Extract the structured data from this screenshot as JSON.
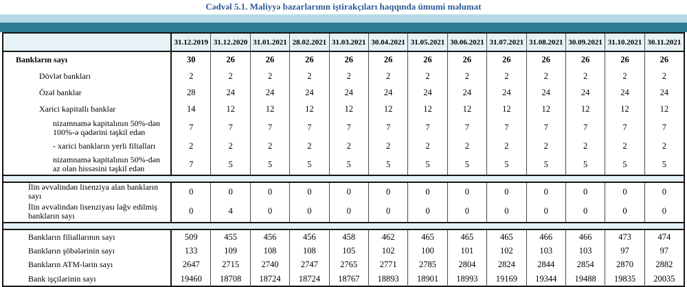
{
  "title": "Cədvəl 5.1. Maliyyə bazarlarının iştirakçıları haqqında ümumi məlumat",
  "colors": {
    "title_blue": "#2e5a97",
    "band_light_blue": "#b7dbe6",
    "band_teal": "#2e7e95",
    "header_bg": "#e7f2f7",
    "separator_bg": "#e4f1f6",
    "border": "#141414"
  },
  "table": {
    "columns": [
      "31.12.2019",
      "31.12.2020",
      "31.01.2021",
      "28.02.2021",
      "31.03.2021",
      "30.04.2021",
      "31.05.2021",
      "30.06.2021",
      "31.07.2021",
      "31.08.2021",
      "30.09.2021",
      "31.10.2021",
      "30.11.2021"
    ],
    "sections": [
      {
        "rows": [
          {
            "label": "Bankların sayı",
            "indent": 0,
            "bold": true,
            "values": [
              30,
              26,
              26,
              26,
              26,
              26,
              26,
              26,
              26,
              26,
              26,
              26,
              26
            ]
          },
          {
            "label": "Dövlət bankları",
            "indent": 2,
            "bold": false,
            "values": [
              2,
              2,
              2,
              2,
              2,
              2,
              2,
              2,
              2,
              2,
              2,
              2,
              2
            ]
          },
          {
            "label": "Özəl banklar",
            "indent": 2,
            "bold": false,
            "values": [
              28,
              24,
              24,
              24,
              24,
              24,
              24,
              24,
              24,
              24,
              24,
              24,
              24
            ]
          },
          {
            "label": "Xarici kapitallı banklar",
            "indent": 2,
            "bold": false,
            "values": [
              14,
              12,
              12,
              12,
              12,
              12,
              12,
              12,
              12,
              12,
              12,
              12,
              12
            ]
          },
          {
            "label": "nizamnamə kapitalının 50%-dən 100%-ə qədərini təşkil edən",
            "indent": 3,
            "bold": false,
            "values": [
              7,
              7,
              7,
              7,
              7,
              7,
              7,
              7,
              7,
              7,
              7,
              7,
              7
            ]
          },
          {
            "label": "-  xarici bankların yerli filialları",
            "indent": 3,
            "bold": false,
            "values": [
              2,
              2,
              2,
              2,
              2,
              2,
              2,
              2,
              2,
              2,
              2,
              2,
              2
            ]
          },
          {
            "label": "nizamnamə kapitalının 50%-dən az olan hissəsini  təşkil edən",
            "indent": 3,
            "bold": false,
            "values": [
              7,
              5,
              5,
              5,
              5,
              5,
              5,
              5,
              5,
              5,
              5,
              5,
              5
            ]
          }
        ]
      },
      {
        "rows": [
          {
            "label": "İlin əvvəlindən lisenziya alan bankların sayı",
            "indent": 1,
            "bold": false,
            "values": [
              0,
              0,
              0,
              0,
              0,
              0,
              0,
              0,
              0,
              0,
              0,
              0,
              0
            ]
          },
          {
            "label": "İlin əvvəlindən lisenziyası ləğv edilmiş bankların sayı",
            "indent": 1,
            "bold": false,
            "values": [
              0,
              4,
              0,
              0,
              0,
              0,
              0,
              0,
              0,
              0,
              0,
              0,
              0
            ]
          }
        ]
      },
      {
        "rows": [
          {
            "label": "Bankların filiallarının sayı",
            "indent": 1,
            "bold": false,
            "values": [
              509,
              455,
              456,
              456,
              458,
              462,
              465,
              465,
              465,
              466,
              466,
              473,
              474
            ]
          },
          {
            "label": "Bankların şöbələrinin sayı",
            "indent": 1,
            "bold": false,
            "values": [
              133,
              109,
              108,
              108,
              105,
              102,
              100,
              101,
              102,
              103,
              103,
              97,
              97
            ]
          },
          {
            "label": "Bankların ATM-lərin sayı",
            "indent": 1,
            "bold": false,
            "values": [
              2647,
              2715,
              2740,
              2747,
              2765,
              2771,
              2785,
              2804,
              2824,
              2844,
              2854,
              2870,
              2882
            ]
          },
          {
            "label": "Bank işçilərinin sayı",
            "indent": 1,
            "bold": false,
            "values": [
              19460,
              18708,
              18724,
              18724,
              18767,
              18893,
              18901,
              18993,
              19169,
              19344,
              19488,
              19835,
              20035
            ]
          }
        ]
      }
    ]
  }
}
